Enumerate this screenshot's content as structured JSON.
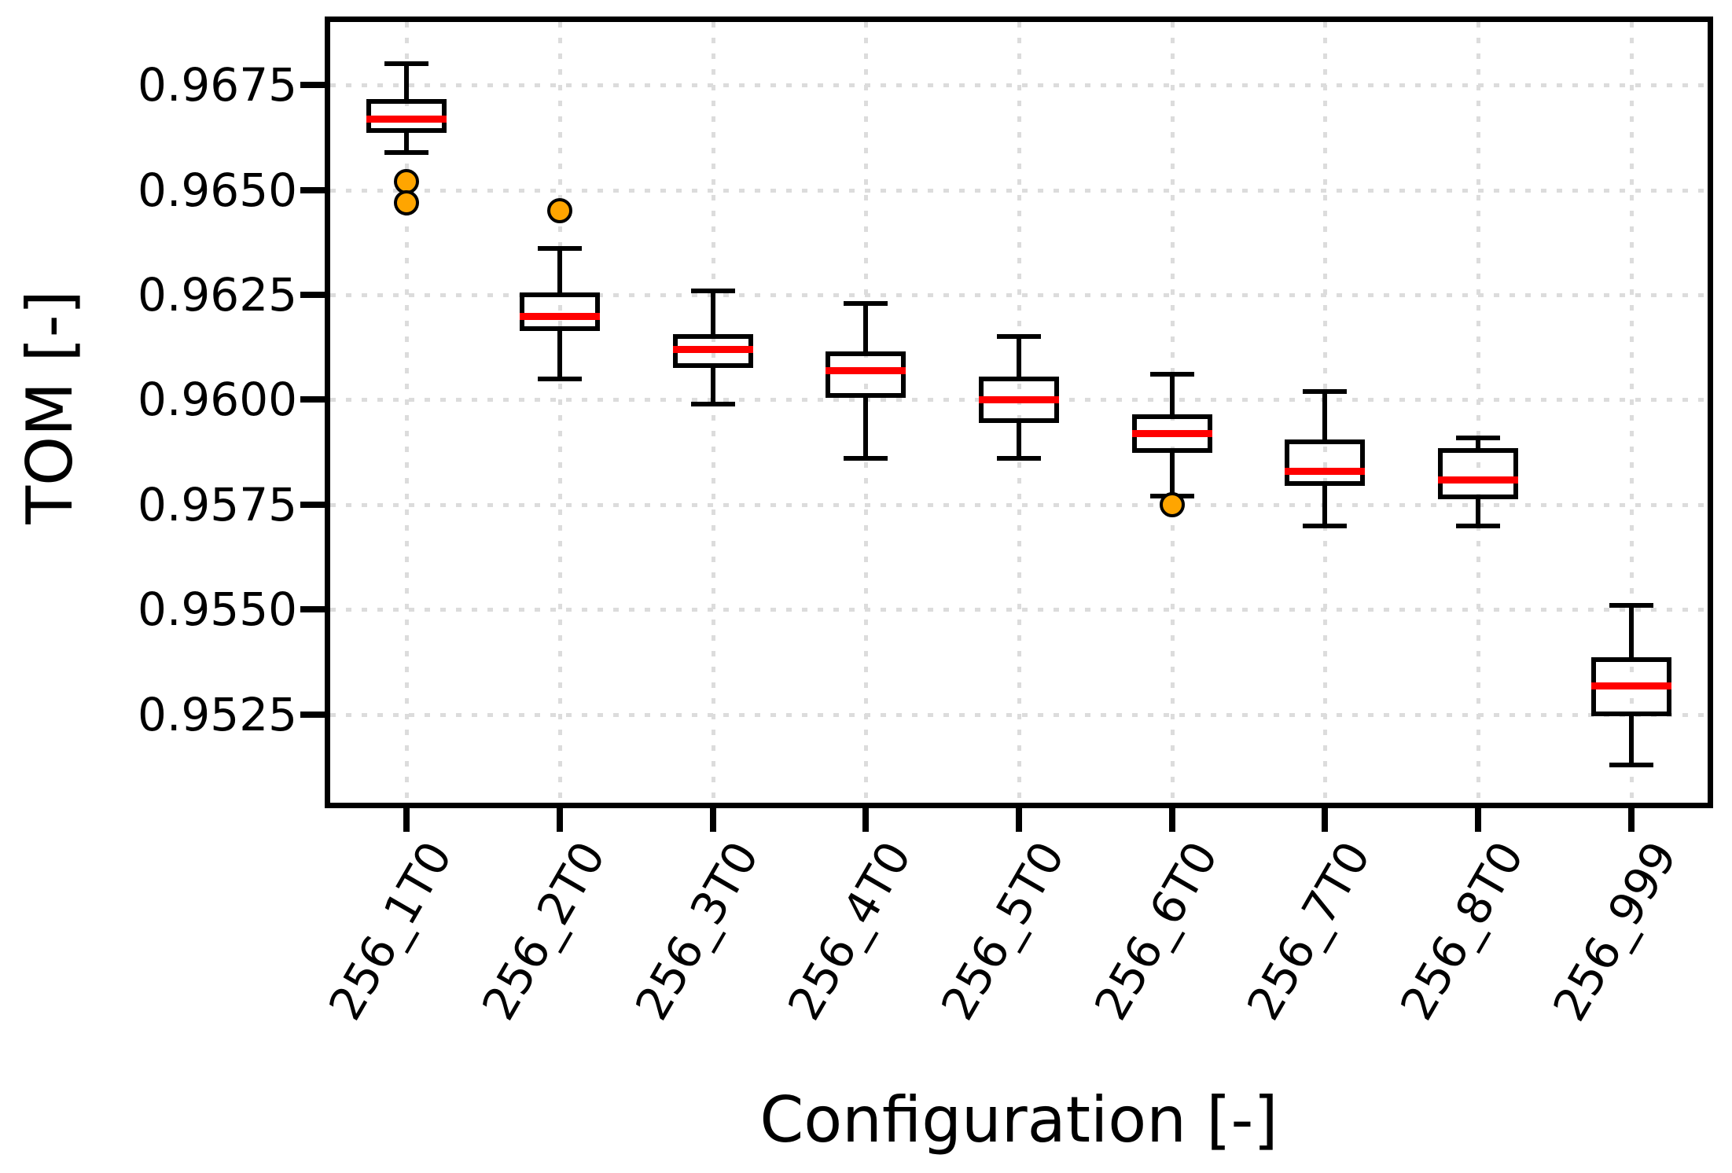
{
  "chart_data": {
    "type": "boxplot",
    "title": "",
    "xlabel": "Configuration [-]",
    "ylabel": "TOM [-]",
    "categories": [
      "256_1T0",
      "256_2T0",
      "256_3T0",
      "256_4T0",
      "256_5T0",
      "256_6T0",
      "256_7T0",
      "256_8T0",
      "256_999"
    ],
    "yticks": {
      "labels": [
        "0.9675",
        "0.9650",
        "0.9625",
        "0.9600",
        "0.9575",
        "0.9550",
        "0.9525"
      ],
      "values": [
        0.9675,
        0.965,
        0.9625,
        0.96,
        0.9575,
        0.955,
        0.9525
      ]
    },
    "ylim": [
      0.9504,
      0.969
    ],
    "grid": true,
    "legend": "none",
    "boxes": [
      {
        "label": "256_1T0",
        "whisker_low": 0.9659,
        "q1": 0.9664,
        "median": 0.9667,
        "q3": 0.9671,
        "whisker_high": 0.968,
        "outliers": [
          0.9652,
          0.9647
        ]
      },
      {
        "label": "256_2T0",
        "whisker_low": 0.9605,
        "q1": 0.9617,
        "median": 0.962,
        "q3": 0.9625,
        "whisker_high": 0.9636,
        "outliers": [
          0.9645
        ]
      },
      {
        "label": "256_3T0",
        "whisker_low": 0.9599,
        "q1": 0.9608,
        "median": 0.9612,
        "q3": 0.9615,
        "whisker_high": 0.9626,
        "outliers": []
      },
      {
        "label": "256_4T0",
        "whisker_low": 0.9586,
        "q1": 0.9601,
        "median": 0.9607,
        "q3": 0.9611,
        "whisker_high": 0.9623,
        "outliers": []
      },
      {
        "label": "256_5T0",
        "whisker_low": 0.9586,
        "q1": 0.9595,
        "median": 0.96,
        "q3": 0.9605,
        "whisker_high": 0.9615,
        "outliers": []
      },
      {
        "label": "256_6T0",
        "whisker_low": 0.9577,
        "q1": 0.9588,
        "median": 0.9592,
        "q3": 0.9596,
        "whisker_high": 0.9606,
        "outliers": [
          0.9575
        ]
      },
      {
        "label": "256_7T0",
        "whisker_low": 0.957,
        "q1": 0.958,
        "median": 0.9583,
        "q3": 0.959,
        "whisker_high": 0.9602,
        "outliers": []
      },
      {
        "label": "256_8T0",
        "whisker_low": 0.957,
        "q1": 0.9577,
        "median": 0.9581,
        "q3": 0.9588,
        "whisker_high": 0.9591,
        "outliers": []
      },
      {
        "label": "256_999",
        "whisker_low": 0.9513,
        "q1": 0.9525,
        "median": 0.9532,
        "q3": 0.9538,
        "whisker_high": 0.9551,
        "outliers": []
      }
    ],
    "colors": {
      "median": "#ff0000",
      "outlier_fill": "#ffa500",
      "line": "#000000",
      "grid": "#dcdcdc",
      "background": "#ffffff"
    }
  }
}
